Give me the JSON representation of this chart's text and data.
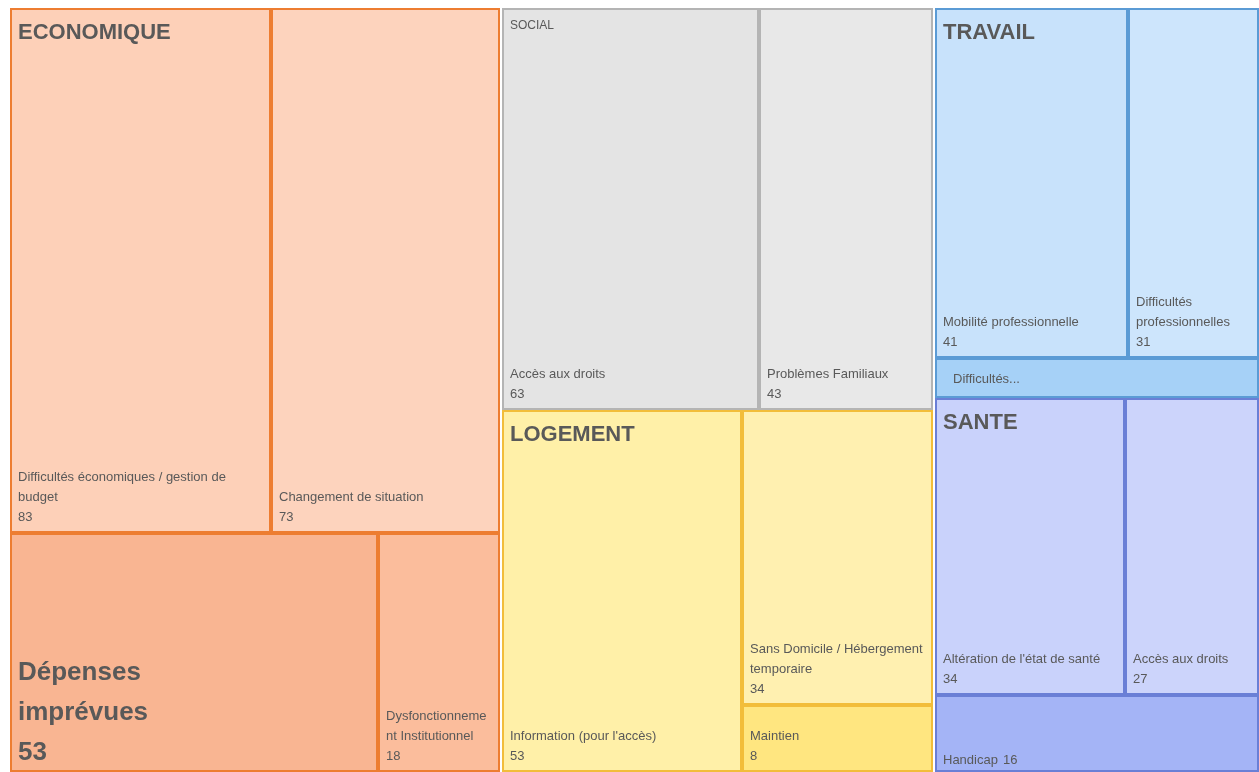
{
  "chart_data": {
    "type": "other",
    "data_labels": true,
    "categories": [
      "Difficultés économiques / gestion de budget",
      "Changement de situation",
      "Dépenses imprévues",
      "Dysfonctionnement Institutionnel",
      "Accès aux droits",
      "Problèmes Familiaux",
      "Information (pour l'accès)",
      "Sans Domicile / Hébergement temporaire",
      "Maintien",
      "Mobilité professionnelle",
      "Difficultés professionnelles",
      "Difficultés...",
      "Altération de l'état de santé",
      "Accès aux droits",
      "Handicap"
    ],
    "series": [
      {
        "name": "ECONOMIQUE",
        "color": "#ed7d31",
        "values": [
          83,
          73,
          53,
          18,
          null,
          null,
          null,
          null,
          null,
          null,
          null,
          null,
          null,
          null,
          null
        ],
        "colors": [
          "#fdd0b8",
          "#fdd3bd",
          "#f9b592",
          "#fbbd9c",
          null,
          null,
          null,
          null,
          null,
          null,
          null,
          null,
          null,
          null,
          null
        ]
      },
      {
        "name": "SOCIAL",
        "color": "#b4b4b4",
        "values": [
          null,
          null,
          null,
          null,
          63,
          43,
          null,
          null,
          null,
          null,
          null,
          null,
          null,
          null,
          null
        ],
        "colors": [
          null,
          null,
          null,
          null,
          "#e4e4e4",
          "#e8e8e8",
          null,
          null,
          null,
          null,
          null,
          null,
          null,
          null,
          null
        ]
      },
      {
        "name": "LOGEMENT",
        "color": "#f2bd3a",
        "values": [
          null,
          null,
          null,
          null,
          null,
          null,
          53,
          34,
          8,
          null,
          null,
          null,
          null,
          null,
          null
        ],
        "colors": [
          null,
          null,
          null,
          null,
          null,
          null,
          "#fff0a8",
          "#fff0b0",
          "#ffe680",
          null,
          null,
          null,
          null,
          null,
          null
        ]
      },
      {
        "name": "TRAVAIL",
        "color": "#5b9bd5",
        "values": [
          null,
          null,
          null,
          null,
          null,
          null,
          null,
          null,
          null,
          41,
          31,
          null,
          null,
          null,
          null
        ],
        "colors": [
          null,
          null,
          null,
          null,
          null,
          null,
          null,
          null,
          null,
          "#c8e2fb",
          "#cde5fc",
          "#a6d1f7",
          null,
          null,
          null
        ]
      },
      {
        "name": "SANTE",
        "color": "#6a7fd6",
        "values": [
          null,
          null,
          null,
          null,
          null,
          null,
          null,
          null,
          null,
          null,
          null,
          null,
          34,
          27,
          16
        ],
        "colors": [
          null,
          null,
          null,
          null,
          null,
          null,
          null,
          null,
          null,
          null,
          null,
          null,
          "#c9d2fb",
          "#ccd4fb",
          "#a4b4f6"
        ]
      }
    ]
  }
}
